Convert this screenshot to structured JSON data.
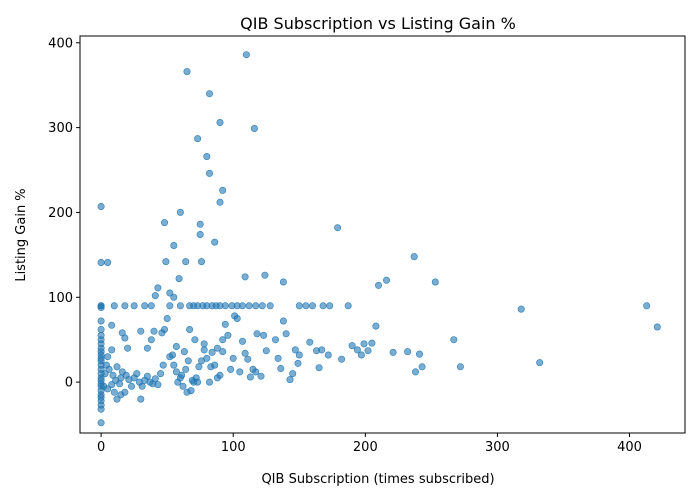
{
  "chart_data": {
    "type": "scatter",
    "title": "QIB Subscription vs Listing Gain %",
    "xlabel": "QIB Subscription (times subscribed)",
    "ylabel": "Listing Gain %",
    "xlim": [
      -16,
      442
    ],
    "ylim": [
      -60,
      408
    ],
    "xticks": [
      0,
      100,
      200,
      300,
      400
    ],
    "yticks": [
      0,
      100,
      200,
      300,
      400
    ],
    "grid": false,
    "marker_color": "#1f77b4",
    "marker_opacity": 0.6,
    "points": [
      [
        0,
        207
      ],
      [
        0,
        141
      ],
      [
        5,
        141
      ],
      [
        0,
        90
      ],
      [
        0,
        90
      ],
      [
        0,
        88
      ],
      [
        0,
        72
      ],
      [
        0,
        62
      ],
      [
        0,
        55
      ],
      [
        0,
        50
      ],
      [
        0,
        45
      ],
      [
        0,
        40
      ],
      [
        0,
        36
      ],
      [
        0,
        32
      ],
      [
        0,
        28
      ],
      [
        0,
        25
      ],
      [
        0,
        20
      ],
      [
        0,
        15
      ],
      [
        0,
        10
      ],
      [
        0,
        5
      ],
      [
        0,
        2
      ],
      [
        0,
        -2
      ],
      [
        0,
        -5
      ],
      [
        0,
        -10
      ],
      [
        0,
        -15
      ],
      [
        0,
        -18
      ],
      [
        0,
        -22
      ],
      [
        0,
        -27
      ],
      [
        0,
        -32
      ],
      [
        0,
        -48
      ],
      [
        3,
        10
      ],
      [
        5,
        30
      ],
      [
        8,
        67
      ],
      [
        10,
        90
      ],
      [
        18,
        90
      ],
      [
        25,
        90
      ],
      [
        33,
        90
      ],
      [
        38,
        90
      ],
      [
        8,
        38
      ],
      [
        12,
        18
      ],
      [
        15,
        5
      ],
      [
        2,
        -5
      ],
      [
        5,
        -8
      ],
      [
        8,
        -3
      ],
      [
        10,
        -12
      ],
      [
        12,
        -20
      ],
      [
        15,
        -15
      ],
      [
        18,
        -12
      ],
      [
        4,
        20
      ],
      [
        6,
        15
      ],
      [
        9,
        8
      ],
      [
        11,
        2
      ],
      [
        14,
        -2
      ],
      [
        16,
        12
      ],
      [
        19,
        8
      ],
      [
        21,
        3
      ],
      [
        23,
        -5
      ],
      [
        25,
        5
      ],
      [
        27,
        10
      ],
      [
        29,
        0
      ],
      [
        31,
        -5
      ],
      [
        33,
        2
      ],
      [
        35,
        7
      ],
      [
        37,
        0
      ],
      [
        39,
        -2
      ],
      [
        41,
        4
      ],
      [
        43,
        -3
      ],
      [
        45,
        10
      ],
      [
        47,
        20
      ],
      [
        30,
        -20
      ],
      [
        20,
        40
      ],
      [
        16,
        58
      ],
      [
        18,
        52
      ],
      [
        30,
        60
      ],
      [
        35,
        40
      ],
      [
        38,
        50
      ],
      [
        40,
        60
      ],
      [
        41,
        102
      ],
      [
        43,
        111
      ],
      [
        46,
        58
      ],
      [
        48,
        62
      ],
      [
        50,
        75
      ],
      [
        52,
        105
      ],
      [
        55,
        100
      ],
      [
        48,
        188
      ],
      [
        49,
        142
      ],
      [
        55,
        161
      ],
      [
        60,
        200
      ],
      [
        59,
        122
      ],
      [
        52,
        30
      ],
      [
        55,
        20
      ],
      [
        57,
        12
      ],
      [
        60,
        5
      ],
      [
        62,
        -5
      ],
      [
        64,
        15
      ],
      [
        66,
        25
      ],
      [
        68,
        -10
      ],
      [
        70,
        0
      ],
      [
        72,
        5
      ],
      [
        74,
        18
      ],
      [
        76,
        25
      ],
      [
        78,
        38
      ],
      [
        80,
        28
      ],
      [
        82,
        0
      ],
      [
        84,
        35
      ],
      [
        86,
        20
      ],
      [
        88,
        5
      ],
      [
        90,
        8
      ],
      [
        92,
        50
      ],
      [
        94,
        68
      ],
      [
        96,
        55
      ],
      [
        98,
        15
      ],
      [
        100,
        28
      ],
      [
        101,
        78
      ],
      [
        103,
        75
      ],
      [
        105,
        12
      ],
      [
        107,
        48
      ],
      [
        109,
        34
      ],
      [
        111,
        27
      ],
      [
        113,
        6
      ],
      [
        115,
        15
      ],
      [
        117,
        12
      ],
      [
        118,
        57
      ],
      [
        121,
        7
      ],
      [
        123,
        55
      ],
      [
        125,
        37
      ],
      [
        128,
        90
      ],
      [
        132,
        50
      ],
      [
        134,
        28
      ],
      [
        136,
        16
      ],
      [
        138,
        72
      ],
      [
        140,
        57
      ],
      [
        143,
        3
      ],
      [
        145,
        10
      ],
      [
        147,
        38
      ],
      [
        149,
        22
      ],
      [
        150,
        32
      ],
      [
        155,
        90
      ],
      [
        158,
        47
      ],
      [
        160,
        90
      ],
      [
        163,
        37
      ],
      [
        165,
        17
      ],
      [
        167,
        38
      ],
      [
        172,
        32
      ],
      [
        179,
        182
      ],
      [
        182,
        27
      ],
      [
        187,
        90
      ],
      [
        190,
        43
      ],
      [
        194,
        38
      ],
      [
        197,
        32
      ],
      [
        199,
        45
      ],
      [
        202,
        37
      ],
      [
        205,
        46
      ],
      [
        208,
        66
      ],
      [
        210,
        114
      ],
      [
        216,
        120
      ],
      [
        221,
        35
      ],
      [
        232,
        36
      ],
      [
        237,
        148
      ],
      [
        238,
        12
      ],
      [
        241,
        33
      ],
      [
        243,
        18
      ],
      [
        253,
        118
      ],
      [
        267,
        50
      ],
      [
        272,
        18
      ],
      [
        318,
        86
      ],
      [
        332,
        23
      ],
      [
        413,
        90
      ],
      [
        421,
        65
      ],
      [
        52,
        90
      ],
      [
        60,
        90
      ],
      [
        67,
        90
      ],
      [
        70,
        90
      ],
      [
        73,
        90
      ],
      [
        77,
        90
      ],
      [
        80,
        90
      ],
      [
        84,
        90
      ],
      [
        87,
        90
      ],
      [
        90,
        90
      ],
      [
        94,
        90
      ],
      [
        99,
        90
      ],
      [
        103,
        90
      ],
      [
        107,
        90
      ],
      [
        112,
        90
      ],
      [
        117,
        90
      ],
      [
        122,
        90
      ],
      [
        150,
        90
      ],
      [
        168,
        90
      ],
      [
        173,
        90
      ],
      [
        65,
        366
      ],
      [
        82,
        340
      ],
      [
        73,
        287
      ],
      [
        80,
        266
      ],
      [
        82,
        246
      ],
      [
        92,
        226
      ],
      [
        90,
        212
      ],
      [
        75,
        186
      ],
      [
        75,
        174
      ],
      [
        86,
        165
      ],
      [
        64,
        142
      ],
      [
        76,
        142
      ],
      [
        90,
        306
      ],
      [
        110,
        386
      ],
      [
        116,
        299
      ],
      [
        109,
        124
      ],
      [
        124,
        126
      ],
      [
        138,
        118
      ],
      [
        54,
        32
      ],
      [
        57,
        42
      ],
      [
        63,
        36
      ],
      [
        67,
        62
      ],
      [
        71,
        50
      ],
      [
        78,
        45
      ],
      [
        83,
        18
      ],
      [
        88,
        40
      ],
      [
        92,
        36
      ],
      [
        58,
        0
      ],
      [
        61,
        8
      ],
      [
        65,
        -12
      ],
      [
        69,
        2
      ],
      [
        73,
        0
      ]
    ]
  }
}
